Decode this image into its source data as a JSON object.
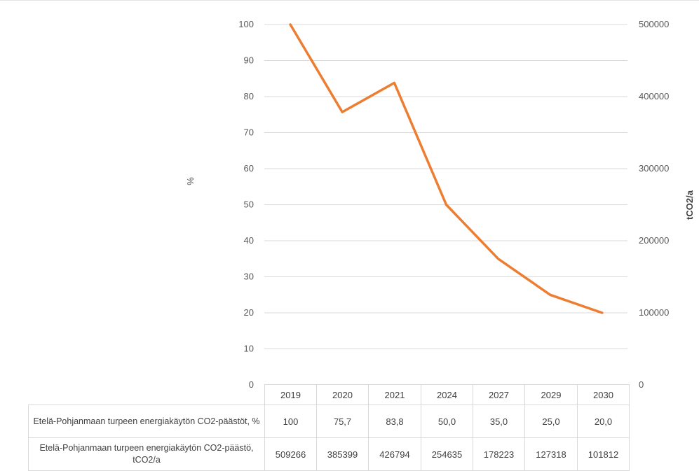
{
  "chart_data": {
    "type": "line",
    "title": "",
    "x": [
      "2019",
      "2020",
      "2021",
      "2024",
      "2027",
      "2029",
      "2030"
    ],
    "series": [
      {
        "name": "Etelä-Pohjanmaan turpeen energiakäytön CO2-päästöt, %",
        "axis": "left",
        "values": [
          100,
          75.7,
          83.8,
          50.0,
          35.0,
          25.0,
          20.0
        ],
        "display_values": [
          "100",
          "75,7",
          "83,8",
          "50,0",
          "35,0",
          "25,0",
          "20,0"
        ],
        "color": "#ed7d31",
        "line_visible": true
      },
      {
        "name": "Etelä-Pohjanmaan turpeen energiakäytön CO2-päästö, tCO2/a",
        "axis": "right",
        "values": [
          509266,
          385399,
          426794,
          254635,
          178223,
          127318,
          101812
        ],
        "display_values": [
          "509266",
          "385399",
          "426794",
          "254635",
          "178223",
          "127318",
          "101812"
        ],
        "line_visible": false
      }
    ],
    "y_left": {
      "label": "%",
      "ylim": [
        0,
        100
      ],
      "ticks": [
        "0",
        "10",
        "20",
        "30",
        "40",
        "50",
        "60",
        "70",
        "80",
        "90",
        "100"
      ]
    },
    "y_right": {
      "label": "tCO2/a",
      "ylim": [
        0,
        500000
      ],
      "ticks": [
        "0",
        "100000",
        "200000",
        "300000",
        "400000",
        "500000"
      ]
    },
    "grid": true,
    "legend": "data-table-below"
  },
  "table": {
    "row_labels": [
      "Etelä-Pohjanmaan turpeen energiakäytön CO2-päästöt, %",
      "Etelä-Pohjanmaan turpeen energiakäytön CO2-päästö, tCO2/a"
    ]
  }
}
